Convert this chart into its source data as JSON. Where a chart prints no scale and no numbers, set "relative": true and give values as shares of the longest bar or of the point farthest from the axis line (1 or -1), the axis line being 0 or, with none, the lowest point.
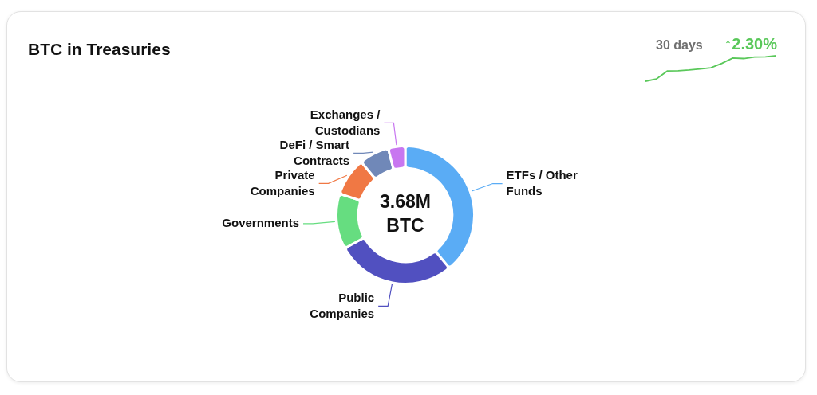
{
  "chart_data": [
    {
      "type": "donut",
      "title": "BTC in Treasuries",
      "categories": [
        "ETFs / Other Funds",
        "Public Companies",
        "Governments",
        "Private Companies",
        "DeFi / Smart Contracts",
        "Exchanges / Custodians"
      ],
      "values": [
        39,
        28,
        13,
        9,
        7,
        4
      ],
      "colors": [
        "#5aacf5",
        "#5150c0",
        "#66dd80",
        "#f07844",
        "#7088b8",
        "#c877f0"
      ],
      "annotations": [
        "3.68M BTC"
      ]
    },
    {
      "type": "line",
      "relative": true,
      "categories": [
        null,
        null,
        null,
        null,
        null,
        null,
        null,
        null,
        null,
        null,
        null,
        null,
        null
      ],
      "series": [
        {
          "color": "#5ac85a",
          "values": [
            0,
            0.09,
            0.4,
            0.41,
            0.44,
            0.48,
            0.53,
            0.7,
            0.91,
            0.89,
            0.95,
            0.96,
            1
          ]
        }
      ],
      "annotations": [
        "30 days",
        "↑2.30%"
      ]
    }
  ]
}
